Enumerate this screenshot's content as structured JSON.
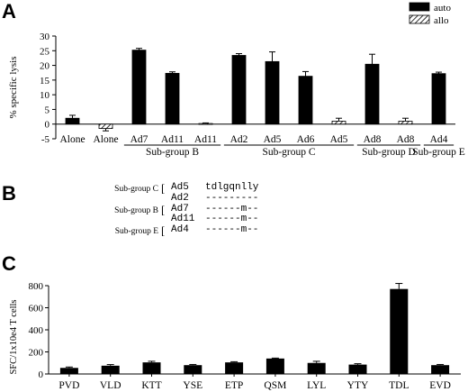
{
  "panels": {
    "a": {
      "letter": "A"
    },
    "b": {
      "letter": "B"
    },
    "c": {
      "letter": "C"
    }
  },
  "chart_data": [
    {
      "type": "bar",
      "panel": "A",
      "ylabel": "% specific lysis",
      "ylim": [
        -5,
        30
      ],
      "yticks": [
        -5,
        0,
        5,
        10,
        15,
        20,
        25,
        30
      ],
      "legend": {
        "placement": "top-right",
        "entries": [
          "auto",
          "allo"
        ]
      },
      "bars": [
        {
          "label": "Alone",
          "value": 2.0,
          "err": 1.0,
          "series": "auto"
        },
        {
          "label": "Alone",
          "value": -1.5,
          "err": 0.8,
          "series": "allo"
        },
        {
          "label": "Ad7",
          "value": 25.2,
          "err": 0.6,
          "series": "auto"
        },
        {
          "label": "Ad11",
          "value": 17.3,
          "err": 0.5,
          "series": "auto"
        },
        {
          "label": "Ad11",
          "value": 0.2,
          "err": 0.2,
          "series": "allo"
        },
        {
          "label": "Ad2",
          "value": 23.4,
          "err": 0.6,
          "series": "auto"
        },
        {
          "label": "Ad5",
          "value": 21.3,
          "err": 3.3,
          "series": "auto"
        },
        {
          "label": "Ad6",
          "value": 16.3,
          "err": 1.6,
          "series": "auto"
        },
        {
          "label": "Ad5",
          "value": 1.0,
          "err": 1.0,
          "series": "allo"
        },
        {
          "label": "Ad8",
          "value": 20.4,
          "err": 3.4,
          "series": "auto"
        },
        {
          "label": "Ad8",
          "value": 1.0,
          "err": 1.0,
          "series": "allo"
        },
        {
          "label": "Ad4",
          "value": 17.2,
          "err": 0.5,
          "series": "auto"
        }
      ],
      "groups": [
        {
          "label": "Sub-group B",
          "bars": [
            2,
            4
          ]
        },
        {
          "label": "Sub-group C",
          "bars": [
            5,
            8
          ]
        },
        {
          "label": "Sub-group D",
          "bars": [
            9,
            10
          ]
        },
        {
          "label": "Sub-group E",
          "bars": [
            11,
            11
          ]
        }
      ],
      "colors": {
        "auto": "#000000",
        "allo": "#ffffff"
      }
    },
    {
      "type": "bar",
      "panel": "C",
      "ylabel": "SFC/1x10e4 T cells",
      "ylim": [
        0,
        800
      ],
      "yticks": [
        0,
        200,
        400,
        600,
        800
      ],
      "categories": [
        "PVD",
        "VLD",
        "KTT",
        "YSE",
        "ETP",
        "QSM",
        "LYL",
        "YTY",
        "TDL",
        "EVD"
      ],
      "values": [
        55,
        75,
        105,
        80,
        105,
        140,
        100,
        85,
        770,
        80
      ],
      "errors": [
        8,
        10,
        10,
        6,
        6,
        4,
        15,
        8,
        50,
        6
      ]
    }
  ],
  "alignment": {
    "panel": "B",
    "rows": [
      {
        "group": "Sub-group C",
        "name": "Ad5",
        "seq": "tdlgqnlly"
      },
      {
        "group": "",
        "name": "Ad2",
        "seq": "---------"
      },
      {
        "group": "Sub-group B",
        "name": "Ad7",
        "seq": "------m--"
      },
      {
        "group": "",
        "name": "Ad11",
        "seq": "------m--"
      },
      {
        "group": "Sub-group E",
        "name": "Ad4",
        "seq": "------m--"
      }
    ]
  }
}
